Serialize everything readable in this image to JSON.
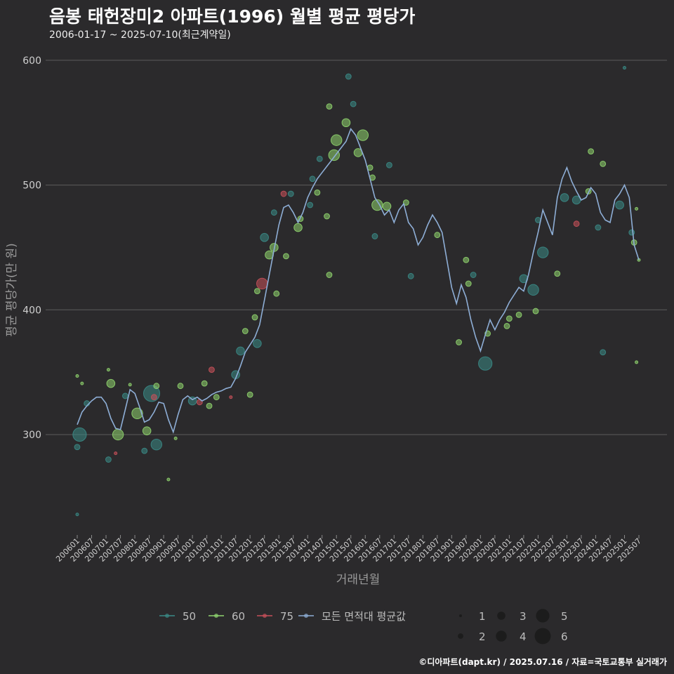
{
  "title": "음봉 태헌장미2 아파트(1996) 월별 평균 평당가",
  "subtitle": "2006-01-17 ~ 2025-07-10(최근계약일)",
  "caption": "©디아파트(dapt.kr) / 2025.07.16 / 자료=국토교통부 실거래가",
  "colors": {
    "background": "#2b2a2c",
    "grid": "#5c5c5c",
    "area50": "#3a8a86",
    "area60": "#8fd46e",
    "area75": "#c8505a",
    "avg_line": "#8eaed6"
  },
  "chart_data": {
    "type": "scatter",
    "xlabel": "거래년월",
    "ylabel": "평균 평당가(만 원)",
    "ylim": [
      220,
      610
    ],
    "yticks": [
      300,
      400,
      500,
      600
    ],
    "grid": true,
    "legend_position": "bottom",
    "x_tick_labels": [
      "200601",
      "200607",
      "200701",
      "200707",
      "200801",
      "200807",
      "200901",
      "200907",
      "201001",
      "201007",
      "201101",
      "201107",
      "201201",
      "201207",
      "201301",
      "201307",
      "201401",
      "201407",
      "201501",
      "201507",
      "201601",
      "201607",
      "201701",
      "201707",
      "201801",
      "201807",
      "201901",
      "201907",
      "202001",
      "202007",
      "202101",
      "202107",
      "202201",
      "202207",
      "202301",
      "202307",
      "202401",
      "202407",
      "202501",
      "202507"
    ],
    "legend": {
      "areas": [
        {
          "label": "50",
          "color_key": "area50"
        },
        {
          "label": "60",
          "color_key": "area60"
        },
        {
          "label": "75",
          "color_key": "area75"
        },
        {
          "label": "모든 면적대 평균값",
          "color_key": "avg_line"
        }
      ],
      "sizes": [
        "1",
        "2",
        "3",
        "4",
        "5",
        "6"
      ]
    },
    "line_series": {
      "name": "모든 면적대 평균값",
      "points": [
        [
          "2006-01",
          308
        ],
        [
          "2006-03",
          318
        ],
        [
          "2006-05",
          323
        ],
        [
          "2006-07",
          327
        ],
        [
          "2006-09",
          330
        ],
        [
          "2006-11",
          330
        ],
        [
          "2007-01",
          325
        ],
        [
          "2007-03",
          313
        ],
        [
          "2007-05",
          305
        ],
        [
          "2007-07",
          304
        ],
        [
          "2007-09",
          320
        ],
        [
          "2007-11",
          336
        ],
        [
          "2008-01",
          333
        ],
        [
          "2008-03",
          322
        ],
        [
          "2008-05",
          310
        ],
        [
          "2008-07",
          312
        ],
        [
          "2008-09",
          318
        ],
        [
          "2008-11",
          326
        ],
        [
          "2009-01",
          325
        ],
        [
          "2009-03",
          312
        ],
        [
          "2009-05",
          302
        ],
        [
          "2009-07",
          316
        ],
        [
          "2009-09",
          328
        ],
        [
          "2009-11",
          331
        ],
        [
          "2010-01",
          328
        ],
        [
          "2010-03",
          330
        ],
        [
          "2010-05",
          327
        ],
        [
          "2010-07",
          329
        ],
        [
          "2010-09",
          332
        ],
        [
          "2010-11",
          334
        ],
        [
          "2011-01",
          335
        ],
        [
          "2011-03",
          337
        ],
        [
          "2011-05",
          338
        ],
        [
          "2011-07",
          345
        ],
        [
          "2011-09",
          355
        ],
        [
          "2011-11",
          366
        ],
        [
          "2012-01",
          372
        ],
        [
          "2012-03",
          378
        ],
        [
          "2012-05",
          388
        ],
        [
          "2012-07",
          408
        ],
        [
          "2012-09",
          428
        ],
        [
          "2012-11",
          448
        ],
        [
          "2013-01",
          468
        ],
        [
          "2013-03",
          482
        ],
        [
          "2013-05",
          484
        ],
        [
          "2013-07",
          478
        ],
        [
          "2013-09",
          470
        ],
        [
          "2013-11",
          478
        ],
        [
          "2014-01",
          490
        ],
        [
          "2014-03",
          498
        ],
        [
          "2014-05",
          505
        ],
        [
          "2014-07",
          510
        ],
        [
          "2014-09",
          515
        ],
        [
          "2014-11",
          520
        ],
        [
          "2015-01",
          525
        ],
        [
          "2015-03",
          530
        ],
        [
          "2015-05",
          535
        ],
        [
          "2015-07",
          545
        ],
        [
          "2015-09",
          540
        ],
        [
          "2015-11",
          530
        ],
        [
          "2016-01",
          520
        ],
        [
          "2016-03",
          505
        ],
        [
          "2016-05",
          490
        ],
        [
          "2016-07",
          484
        ],
        [
          "2016-09",
          476
        ],
        [
          "2016-11",
          480
        ],
        [
          "2017-01",
          470
        ],
        [
          "2017-03",
          480
        ],
        [
          "2017-05",
          485
        ],
        [
          "2017-07",
          470
        ],
        [
          "2017-09",
          465
        ],
        [
          "2017-11",
          452
        ],
        [
          "2018-01",
          458
        ],
        [
          "2018-03",
          468
        ],
        [
          "2018-05",
          476
        ],
        [
          "2018-07",
          470
        ],
        [
          "2018-09",
          462
        ],
        [
          "2018-11",
          440
        ],
        [
          "2019-01",
          418
        ],
        [
          "2019-03",
          405
        ],
        [
          "2019-05",
          420
        ],
        [
          "2019-07",
          410
        ],
        [
          "2019-09",
          392
        ],
        [
          "2019-11",
          378
        ],
        [
          "2020-01",
          367
        ],
        [
          "2020-03",
          380
        ],
        [
          "2020-05",
          392
        ],
        [
          "2020-07",
          384
        ],
        [
          "2020-09",
          392
        ],
        [
          "2020-11",
          398
        ],
        [
          "2021-01",
          406
        ],
        [
          "2021-03",
          412
        ],
        [
          "2021-05",
          418
        ],
        [
          "2021-07",
          415
        ],
        [
          "2021-09",
          428
        ],
        [
          "2021-11",
          446
        ],
        [
          "2022-01",
          462
        ],
        [
          "2022-03",
          480
        ],
        [
          "2022-05",
          470
        ],
        [
          "2022-07",
          460
        ],
        [
          "2022-09",
          490
        ],
        [
          "2022-11",
          505
        ],
        [
          "2023-01",
          514
        ],
        [
          "2023-03",
          503
        ],
        [
          "2023-05",
          495
        ],
        [
          "2023-07",
          488
        ],
        [
          "2023-09",
          490
        ],
        [
          "2023-11",
          498
        ],
        [
          "2024-01",
          493
        ],
        [
          "2024-03",
          478
        ],
        [
          "2024-05",
          472
        ],
        [
          "2024-07",
          470
        ],
        [
          "2024-09",
          488
        ],
        [
          "2024-11",
          493
        ],
        [
          "2025-01",
          500
        ],
        [
          "2025-03",
          490
        ],
        [
          "2025-05",
          452
        ],
        [
          "2025-07",
          440
        ]
      ]
    },
    "bubbles": [
      {
        "x": "2006-01",
        "y": 236,
        "area": "50",
        "n": 1
      },
      {
        "x": "2006-01",
        "y": 290,
        "area": "50",
        "n": 2
      },
      {
        "x": "2006-02",
        "y": 300,
        "area": "50",
        "n": 5
      },
      {
        "x": "2006-01",
        "y": 347,
        "area": "60",
        "n": 1
      },
      {
        "x": "2006-03",
        "y": 341,
        "area": "60",
        "n": 1
      },
      {
        "x": "2006-05",
        "y": 325,
        "area": "50",
        "n": 2
      },
      {
        "x": "2007-02",
        "y": 352,
        "area": "60",
        "n": 1
      },
      {
        "x": "2007-03",
        "y": 341,
        "area": "60",
        "n": 3
      },
      {
        "x": "2007-02",
        "y": 280,
        "area": "50",
        "n": 2
      },
      {
        "x": "2007-06",
        "y": 300,
        "area": "60",
        "n": 4
      },
      {
        "x": "2007-05",
        "y": 285,
        "area": "75",
        "n": 1
      },
      {
        "x": "2007-09",
        "y": 331,
        "area": "50",
        "n": 2
      },
      {
        "x": "2007-11",
        "y": 340,
        "area": "60",
        "n": 1
      },
      {
        "x": "2008-02",
        "y": 317,
        "area": "60",
        "n": 4
      },
      {
        "x": "2008-05",
        "y": 287,
        "area": "50",
        "n": 2
      },
      {
        "x": "2008-06",
        "y": 303,
        "area": "60",
        "n": 3
      },
      {
        "x": "2008-08",
        "y": 333,
        "area": "50",
        "n": 6
      },
      {
        "x": "2008-09",
        "y": 330,
        "area": "75",
        "n": 2
      },
      {
        "x": "2008-10",
        "y": 339,
        "area": "60",
        "n": 2
      },
      {
        "x": "2008-10",
        "y": 292,
        "area": "50",
        "n": 4
      },
      {
        "x": "2009-03",
        "y": 264,
        "area": "60",
        "n": 1
      },
      {
        "x": "2009-06",
        "y": 297,
        "area": "60",
        "n": 1
      },
      {
        "x": "2009-08",
        "y": 339,
        "area": "60",
        "n": 2
      },
      {
        "x": "2010-01",
        "y": 327,
        "area": "50",
        "n": 3
      },
      {
        "x": "2010-04",
        "y": 326,
        "area": "75",
        "n": 2
      },
      {
        "x": "2010-06",
        "y": 341,
        "area": "60",
        "n": 2
      },
      {
        "x": "2010-08",
        "y": 323,
        "area": "60",
        "n": 2
      },
      {
        "x": "2010-09",
        "y": 352,
        "area": "75",
        "n": 2
      },
      {
        "x": "2010-11",
        "y": 330,
        "area": "60",
        "n": 2
      },
      {
        "x": "2011-05",
        "y": 330,
        "area": "75",
        "n": 1
      },
      {
        "x": "2011-07",
        "y": 348,
        "area": "50",
        "n": 3
      },
      {
        "x": "2011-09",
        "y": 367,
        "area": "50",
        "n": 3
      },
      {
        "x": "2011-11",
        "y": 383,
        "area": "60",
        "n": 2
      },
      {
        "x": "2012-01",
        "y": 332,
        "area": "60",
        "n": 2
      },
      {
        "x": "2012-03",
        "y": 394,
        "area": "60",
        "n": 2
      },
      {
        "x": "2012-04",
        "y": 373,
        "area": "50",
        "n": 3
      },
      {
        "x": "2012-04",
        "y": 415,
        "area": "60",
        "n": 2
      },
      {
        "x": "2012-06",
        "y": 421,
        "area": "75",
        "n": 4
      },
      {
        "x": "2012-07",
        "y": 458,
        "area": "50",
        "n": 3
      },
      {
        "x": "2012-09",
        "y": 444,
        "area": "60",
        "n": 3
      },
      {
        "x": "2012-11",
        "y": 450,
        "area": "60",
        "n": 3
      },
      {
        "x": "2012-12",
        "y": 413,
        "area": "60",
        "n": 2
      },
      {
        "x": "2012-11",
        "y": 478,
        "area": "50",
        "n": 2
      },
      {
        "x": "2013-03",
        "y": 493,
        "area": "75",
        "n": 2
      },
      {
        "x": "2013-04",
        "y": 443,
        "area": "60",
        "n": 2
      },
      {
        "x": "2013-06",
        "y": 493,
        "area": "50",
        "n": 2
      },
      {
        "x": "2013-09",
        "y": 466,
        "area": "60",
        "n": 3
      },
      {
        "x": "2013-10",
        "y": 473,
        "area": "60",
        "n": 2
      },
      {
        "x": "2014-02",
        "y": 484,
        "area": "50",
        "n": 2
      },
      {
        "x": "2014-03",
        "y": 505,
        "area": "50",
        "n": 2
      },
      {
        "x": "2014-05",
        "y": 494,
        "area": "60",
        "n": 2
      },
      {
        "x": "2014-06",
        "y": 521,
        "area": "50",
        "n": 2
      },
      {
        "x": "2014-09",
        "y": 475,
        "area": "60",
        "n": 2
      },
      {
        "x": "2014-10",
        "y": 428,
        "area": "60",
        "n": 2
      },
      {
        "x": "2014-10",
        "y": 563,
        "area": "60",
        "n": 2
      },
      {
        "x": "2014-12",
        "y": 524,
        "area": "60",
        "n": 4
      },
      {
        "x": "2015-01",
        "y": 536,
        "area": "60",
        "n": 4
      },
      {
        "x": "2015-05",
        "y": 550,
        "area": "60",
        "n": 3
      },
      {
        "x": "2015-06",
        "y": 587,
        "area": "50",
        "n": 2
      },
      {
        "x": "2015-08",
        "y": 565,
        "area": "50",
        "n": 2
      },
      {
        "x": "2015-10",
        "y": 526,
        "area": "60",
        "n": 3
      },
      {
        "x": "2015-12",
        "y": 540,
        "area": "60",
        "n": 4
      },
      {
        "x": "2016-03",
        "y": 514,
        "area": "60",
        "n": 2
      },
      {
        "x": "2016-04",
        "y": 506,
        "area": "60",
        "n": 2
      },
      {
        "x": "2016-06",
        "y": 484,
        "area": "60",
        "n": 4
      },
      {
        "x": "2016-05",
        "y": 459,
        "area": "50",
        "n": 2
      },
      {
        "x": "2016-10",
        "y": 483,
        "area": "60",
        "n": 3
      },
      {
        "x": "2016-11",
        "y": 516,
        "area": "50",
        "n": 2
      },
      {
        "x": "2017-06",
        "y": 486,
        "area": "60",
        "n": 2
      },
      {
        "x": "2017-08",
        "y": 427,
        "area": "50",
        "n": 2
      },
      {
        "x": "2018-07",
        "y": 460,
        "area": "60",
        "n": 2
      },
      {
        "x": "2019-04",
        "y": 374,
        "area": "60",
        "n": 2
      },
      {
        "x": "2019-07",
        "y": 440,
        "area": "60",
        "n": 2
      },
      {
        "x": "2019-08",
        "y": 421,
        "area": "60",
        "n": 2
      },
      {
        "x": "2019-10",
        "y": 428,
        "area": "50",
        "n": 2
      },
      {
        "x": "2020-03",
        "y": 357,
        "area": "50",
        "n": 5
      },
      {
        "x": "2020-04",
        "y": 381,
        "area": "60",
        "n": 2
      },
      {
        "x": "2020-12",
        "y": 387,
        "area": "60",
        "n": 2
      },
      {
        "x": "2021-01",
        "y": 393,
        "area": "60",
        "n": 2
      },
      {
        "x": "2021-05",
        "y": 396,
        "area": "60",
        "n": 2
      },
      {
        "x": "2021-07",
        "y": 425,
        "area": "50",
        "n": 3
      },
      {
        "x": "2021-11",
        "y": 416,
        "area": "50",
        "n": 4
      },
      {
        "x": "2021-12",
        "y": 399,
        "area": "60",
        "n": 2
      },
      {
        "x": "2022-01",
        "y": 472,
        "area": "50",
        "n": 2
      },
      {
        "x": "2022-03",
        "y": 446,
        "area": "50",
        "n": 4
      },
      {
        "x": "2022-09",
        "y": 429,
        "area": "60",
        "n": 2
      },
      {
        "x": "2022-12",
        "y": 490,
        "area": "50",
        "n": 3
      },
      {
        "x": "2023-05",
        "y": 469,
        "area": "75",
        "n": 2
      },
      {
        "x": "2023-05",
        "y": 488,
        "area": "50",
        "n": 3
      },
      {
        "x": "2023-10",
        "y": 495,
        "area": "60",
        "n": 2
      },
      {
        "x": "2023-11",
        "y": 527,
        "area": "60",
        "n": 2
      },
      {
        "x": "2024-02",
        "y": 466,
        "area": "50",
        "n": 2
      },
      {
        "x": "2024-04",
        "y": 517,
        "area": "60",
        "n": 2
      },
      {
        "x": "2024-04",
        "y": 366,
        "area": "50",
        "n": 2
      },
      {
        "x": "2024-11",
        "y": 484,
        "area": "50",
        "n": 3
      },
      {
        "x": "2025-01",
        "y": 594,
        "area": "50",
        "n": 1
      },
      {
        "x": "2025-04",
        "y": 462,
        "area": "50",
        "n": 2
      },
      {
        "x": "2025-05",
        "y": 454,
        "area": "60",
        "n": 2
      },
      {
        "x": "2025-06",
        "y": 481,
        "area": "60",
        "n": 1
      },
      {
        "x": "2025-06",
        "y": 358,
        "area": "60",
        "n": 1
      },
      {
        "x": "2025-07",
        "y": 440,
        "area": "60",
        "n": 1
      }
    ]
  }
}
